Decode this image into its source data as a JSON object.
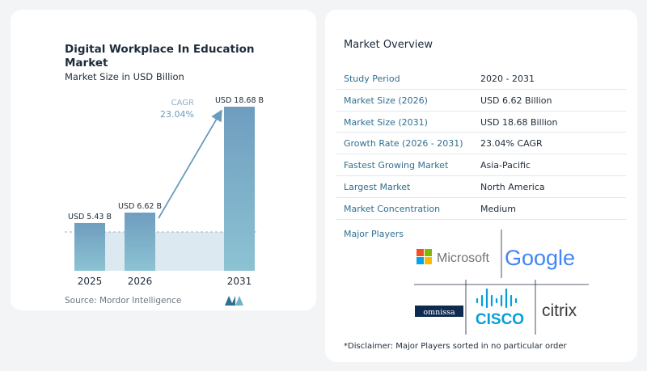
{
  "chart_data": {
    "type": "bar",
    "title": "Digital Workplace In Education Market",
    "subtitle": "Market Size in USD Billion",
    "categories": [
      "2025",
      "2026",
      "2031"
    ],
    "values": [
      5.43,
      6.62,
      18.68
    ],
    "data_labels": [
      "USD 5.43 B",
      "USD 6.62 B",
      "USD 18.68 B"
    ],
    "annotation": {
      "label": "CAGR",
      "value": "23.04%"
    },
    "ylim": [
      0,
      20
    ],
    "grid": false,
    "source": "Source: Mordor Intelligence",
    "colors": {
      "bar_top": "#6f9dbf",
      "bar_bottom": "#8cc3d3",
      "band": "#dde9f1",
      "arrow": "#6a9cbd"
    }
  },
  "overview": {
    "title": "Market Overview",
    "rows": [
      {
        "label": "Study Period",
        "value": "2020 - 2031"
      },
      {
        "label": "Market Size (2026)",
        "value": "USD 6.62 Billion"
      },
      {
        "label": "Market Size (2031)",
        "value": "USD 18.68 Billion"
      },
      {
        "label": "Growth Rate (2026 - 2031)",
        "value": "23.04% CAGR"
      },
      {
        "label": "Fastest Growing Market",
        "value": "Asia-Pacific"
      },
      {
        "label": "Largest Market",
        "value": "North America"
      },
      {
        "label": "Market Concentration",
        "value": "Medium"
      }
    ]
  },
  "players": {
    "title": "Major Players",
    "logos": [
      "Microsoft",
      "Google",
      "omnissa",
      "CISCO",
      "citrix"
    ],
    "disclaimer": "*Disclaimer: Major Players sorted in no particular order"
  }
}
